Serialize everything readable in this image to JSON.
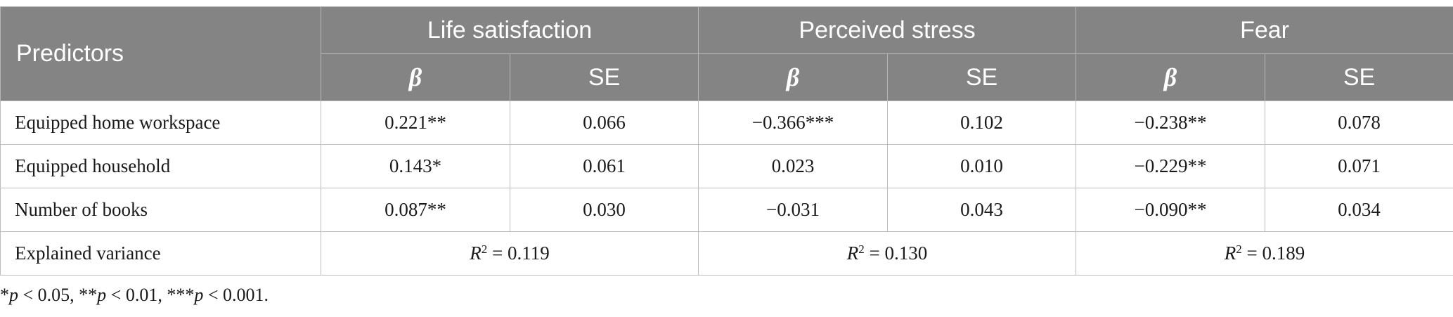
{
  "header": {
    "predictors": "Predictors",
    "groups": [
      "Life satisfaction",
      "Perceived stress",
      "Fear"
    ],
    "beta": "β",
    "se": "SE"
  },
  "rows": [
    {
      "label": "Equipped home workspace",
      "cells": [
        "0.221**",
        "0.066",
        "−0.366***",
        "0.102",
        "−0.238**",
        "0.078"
      ]
    },
    {
      "label": "Equipped household",
      "cells": [
        "0.143*",
        "0.061",
        "0.023",
        "0.010",
        "−0.229**",
        "0.071"
      ]
    },
    {
      "label": "Number of books",
      "cells": [
        "0.087**",
        "0.030",
        "−0.031",
        "0.043",
        "−0.090**",
        "0.034"
      ]
    }
  ],
  "explained": {
    "label": "Explained variance",
    "r_symbol": "R",
    "r_exp": "2",
    "eq": " = ",
    "values": [
      "0.119",
      "0.130",
      "0.189"
    ]
  },
  "footnote": {
    "s1": "*",
    "p1": "p",
    "t1": " < 0.05, ",
    "s2": "**",
    "p2": "p",
    "t2": " < 0.01, ",
    "s3": "***",
    "p3": "p",
    "t3": " < 0.001."
  }
}
